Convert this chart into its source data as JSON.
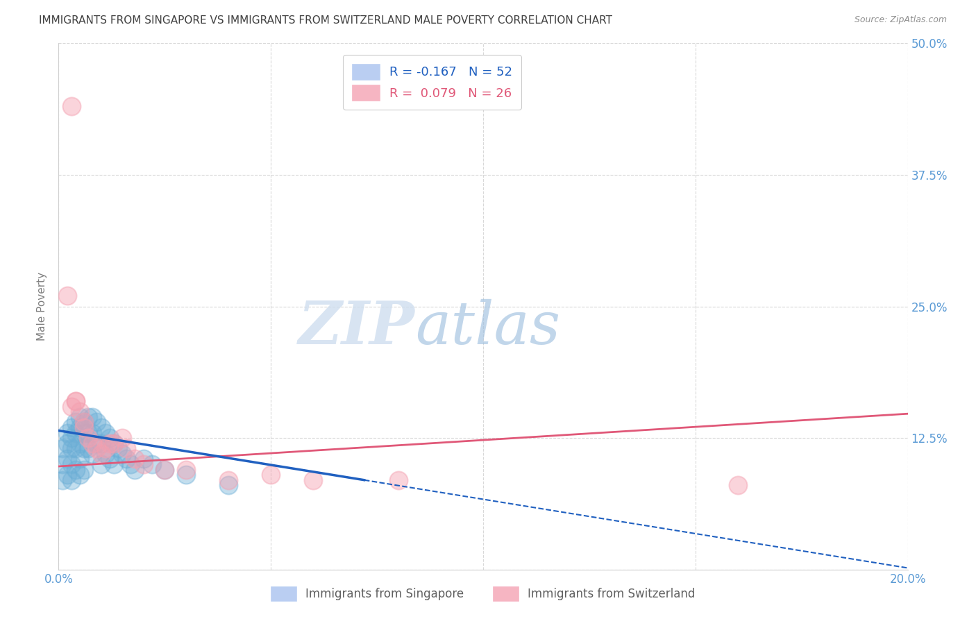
{
  "title": "IMMIGRANTS FROM SINGAPORE VS IMMIGRANTS FROM SWITZERLAND MALE POVERTY CORRELATION CHART",
  "source": "Source: ZipAtlas.com",
  "ylabel": "Male Poverty",
  "xlim": [
    0.0,
    0.2
  ],
  "ylim": [
    0.0,
    0.5
  ],
  "xticks": [
    0.0,
    0.05,
    0.1,
    0.15,
    0.2
  ],
  "xticklabels": [
    "0.0%",
    "",
    "",
    "",
    "20.0%"
  ],
  "yticks": [
    0.0,
    0.125,
    0.25,
    0.375,
    0.5
  ],
  "yticklabels": [
    "",
    "12.5%",
    "25.0%",
    "37.5%",
    "50.0%"
  ],
  "legend_entries": [
    {
      "label": "R = -0.167   N = 52",
      "color": "#aec6f0"
    },
    {
      "label": "R =  0.079   N = 26",
      "color": "#f5a8b8"
    }
  ],
  "bottom_legend": [
    {
      "label": "Immigrants from Singapore",
      "color": "#aec6f0"
    },
    {
      "label": "Immigrants from Switzerland",
      "color": "#f5a8b8"
    }
  ],
  "singapore_color": "#6baed6",
  "switzerland_color": "#f4a0b0",
  "singapore_line_color": "#2060c0",
  "switzerland_line_color": "#e05878",
  "singapore_x": [
    0.001,
    0.001,
    0.001,
    0.002,
    0.002,
    0.002,
    0.002,
    0.003,
    0.003,
    0.003,
    0.003,
    0.003,
    0.004,
    0.004,
    0.004,
    0.004,
    0.005,
    0.005,
    0.005,
    0.005,
    0.005,
    0.006,
    0.006,
    0.006,
    0.006,
    0.007,
    0.007,
    0.007,
    0.008,
    0.008,
    0.008,
    0.009,
    0.009,
    0.01,
    0.01,
    0.01,
    0.011,
    0.011,
    0.012,
    0.012,
    0.013,
    0.013,
    0.014,
    0.015,
    0.016,
    0.017,
    0.018,
    0.02,
    0.022,
    0.025,
    0.03,
    0.04
  ],
  "singapore_y": [
    0.115,
    0.1,
    0.085,
    0.13,
    0.12,
    0.105,
    0.09,
    0.135,
    0.125,
    0.115,
    0.1,
    0.085,
    0.14,
    0.13,
    0.115,
    0.095,
    0.145,
    0.135,
    0.12,
    0.105,
    0.09,
    0.14,
    0.13,
    0.115,
    0.095,
    0.145,
    0.13,
    0.115,
    0.145,
    0.13,
    0.11,
    0.14,
    0.12,
    0.135,
    0.12,
    0.1,
    0.13,
    0.11,
    0.125,
    0.105,
    0.12,
    0.1,
    0.115,
    0.11,
    0.105,
    0.1,
    0.095,
    0.105,
    0.1,
    0.095,
    0.09,
    0.08
  ],
  "switzerland_x": [
    0.002,
    0.003,
    0.004,
    0.004,
    0.005,
    0.006,
    0.006,
    0.007,
    0.008,
    0.009,
    0.01,
    0.011,
    0.012,
    0.013,
    0.015,
    0.016,
    0.018,
    0.02,
    0.025,
    0.03,
    0.04,
    0.05,
    0.06,
    0.08,
    0.16,
    0.003
  ],
  "switzerland_y": [
    0.26,
    0.155,
    0.16,
    0.16,
    0.15,
    0.14,
    0.135,
    0.125,
    0.12,
    0.115,
    0.11,
    0.115,
    0.12,
    0.12,
    0.125,
    0.115,
    0.105,
    0.1,
    0.095,
    0.095,
    0.085,
    0.09,
    0.085,
    0.085,
    0.08,
    0.44
  ],
  "watermark_zip": "ZIP",
  "watermark_atlas": "atlas",
  "background_color": "#ffffff",
  "grid_color": "#d8d8d8",
  "tick_color": "#5b9bd5",
  "title_color": "#404040",
  "axis_label_color": "#808080",
  "singapore_line_x0": 0.0,
  "singapore_line_x_solid_end": 0.072,
  "singapore_line_y0": 0.132,
  "singapore_line_y_solid_end": 0.085,
  "singapore_line_y_dashed_end": 0.04,
  "switzerland_line_y0": 0.098,
  "switzerland_line_y_end": 0.148
}
